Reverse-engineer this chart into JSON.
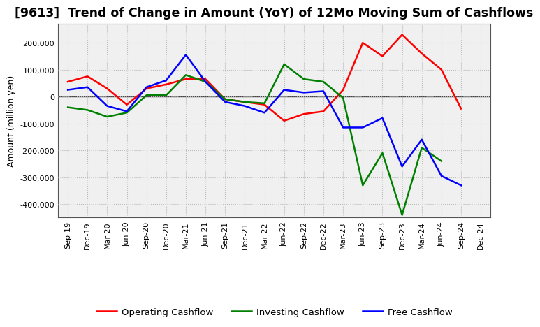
{
  "title": "[9613]  Trend of Change in Amount (YoY) of 12Mo Moving Sum of Cashflows",
  "ylabel": "Amount (million yen)",
  "background_color": "#ffffff",
  "plot_bg_color": "#f0f0f0",
  "grid_color": "#bbbbbb",
  "x_labels": [
    "Sep-19",
    "Dec-19",
    "Mar-20",
    "Jun-20",
    "Sep-20",
    "Dec-20",
    "Mar-21",
    "Jun-21",
    "Sep-21",
    "Dec-21",
    "Mar-22",
    "Jun-22",
    "Sep-22",
    "Dec-22",
    "Mar-23",
    "Jun-23",
    "Sep-23",
    "Dec-23",
    "Mar-24",
    "Jun-24",
    "Sep-24",
    "Dec-24"
  ],
  "operating_cashflow": [
    55000,
    75000,
    30000,
    -30000,
    30000,
    45000,
    65000,
    65000,
    -10000,
    -20000,
    -30000,
    -90000,
    -65000,
    -55000,
    25000,
    200000,
    150000,
    230000,
    160000,
    100000,
    -45000,
    null
  ],
  "investing_cashflow": [
    -40000,
    -50000,
    -75000,
    -60000,
    5000,
    5000,
    80000,
    55000,
    -10000,
    -20000,
    -25000,
    120000,
    65000,
    55000,
    -5000,
    -330000,
    -210000,
    -440000,
    -190000,
    -240000,
    null,
    null
  ],
  "free_cashflow": [
    25000,
    35000,
    -35000,
    -55000,
    35000,
    60000,
    155000,
    55000,
    -20000,
    -35000,
    -60000,
    25000,
    15000,
    20000,
    -115000,
    -115000,
    -80000,
    -260000,
    -160000,
    -295000,
    -330000,
    null
  ],
  "ylim": [
    -450000,
    270000
  ],
  "yticks": [
    -400000,
    -300000,
    -200000,
    -100000,
    0,
    100000,
    200000
  ],
  "line_colors": {
    "operating": "#ff0000",
    "investing": "#008000",
    "free": "#0000ff"
  },
  "line_width": 1.8,
  "title_fontsize": 12.5,
  "tick_fontsize": 8,
  "legend_fontsize": 9.5
}
